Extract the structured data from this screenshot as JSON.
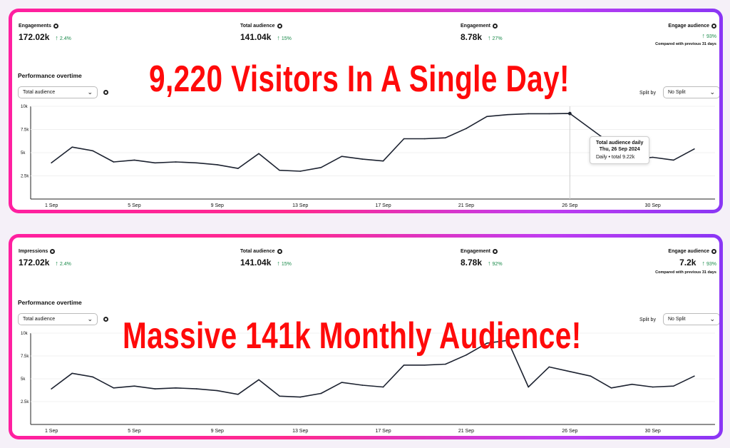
{
  "panel1": {
    "metrics": [
      {
        "label": "Engagements",
        "value": "172.02k",
        "change": "2.4%"
      },
      {
        "label": "Total audience",
        "value": "141.04k",
        "change": "15%"
      },
      {
        "label": "Engagement",
        "value": "8.78k",
        "change": "27%"
      },
      {
        "label": "Engage audience",
        "value": "",
        "change": "93%"
      }
    ],
    "compared": "Compared with previous 31 days",
    "perf_title": "Performance overtime",
    "select": "Total audience",
    "split_label": "Split by",
    "split_value": "No Split",
    "headline": "9,220 Visitors In A Single Day!",
    "tooltip": {
      "title": "Total audience daily",
      "date": "Thu, 26 Sep 2024",
      "value": "Daily • total 9.22k"
    }
  },
  "panel2": {
    "metrics": [
      {
        "label": "Impressions",
        "value": "172.02k",
        "change": "2.4%"
      },
      {
        "label": "Total audience",
        "value": "141.04k",
        "change": "15%"
      },
      {
        "label": "Engagement",
        "value": "8.78k",
        "change": "92%"
      },
      {
        "label": "Engage audience",
        "value": "7.2k",
        "change": "93%"
      }
    ],
    "compared": "Compared with previous 31 days",
    "perf_title": "Performance overtime",
    "select": "Total audience",
    "split_label": "Split by",
    "split_value": "No Split",
    "headline": "Massive 141k Monthly Audience!"
  },
  "icons": {
    "info": "info-icon",
    "arrow": "arrow-up-icon",
    "chevron": "chevron-down-icon"
  },
  "colors": {
    "accent_red": "#ff0a0a",
    "positive": "#1a8a4a",
    "frame_start": "#ff1fa0",
    "frame_end": "#8a36f5"
  },
  "chart_data": [
    {
      "type": "line",
      "yticks": [
        "10k",
        "7.5k",
        "5k",
        "2.5k"
      ],
      "ytick_values": [
        10000,
        7500,
        5000,
        2500
      ],
      "ylim": [
        0,
        10000
      ],
      "xlabels": [
        "1 Sep",
        "5 Sep",
        "9 Sep",
        "13 Sep",
        "17 Sep",
        "21 Sep",
        "26 Sep",
        "30 Sep"
      ],
      "xlabel_days": [
        1,
        5,
        9,
        13,
        17,
        21,
        26,
        30
      ],
      "xlim": [
        0,
        33
      ],
      "x": [
        1,
        2,
        3,
        4,
        5,
        6,
        7,
        8,
        9,
        10,
        11,
        12,
        13,
        14,
        15,
        16,
        17,
        18,
        19,
        20,
        21,
        22,
        23,
        24,
        25,
        26,
        29,
        30,
        31,
        32
      ],
      "values": [
        3900,
        5600,
        5200,
        4000,
        4200,
        3900,
        4000,
        3900,
        3700,
        3300,
        4900,
        3100,
        3000,
        3400,
        4600,
        4300,
        4100,
        6500,
        6500,
        6600,
        7600,
        8900,
        9100,
        9200,
        9200,
        9220,
        4300,
        4500,
        4200,
        5400
      ],
      "highlight_x": 26
    },
    {
      "type": "line",
      "yticks": [
        "10k",
        "7.5k",
        "5k",
        "2.5k"
      ],
      "ytick_values": [
        10000,
        7500,
        5000,
        2500
      ],
      "ylim": [
        0,
        10000
      ],
      "xlabels": [
        "1 Sep",
        "5 Sep",
        "9 Sep",
        "13 Sep",
        "17 Sep",
        "21 Sep",
        "26 Sep",
        "30 Sep"
      ],
      "xlabel_days": [
        1,
        5,
        9,
        13,
        17,
        21,
        26,
        30
      ],
      "xlim": [
        0,
        33
      ],
      "x": [
        1,
        2,
        3,
        4,
        5,
        6,
        7,
        8,
        9,
        10,
        11,
        12,
        13,
        14,
        15,
        16,
        17,
        18,
        19,
        20,
        21,
        22,
        23,
        24,
        25,
        26,
        27,
        28,
        29,
        30,
        31,
        32
      ],
      "values": [
        3900,
        5600,
        5200,
        4000,
        4200,
        3900,
        4000,
        3900,
        3700,
        3300,
        4900,
        3100,
        3000,
        3400,
        4600,
        4300,
        4100,
        6500,
        6500,
        6600,
        7600,
        8900,
        9200,
        4100,
        6300,
        5800,
        5300,
        4000,
        4400,
        4100,
        4200,
        5300
      ]
    }
  ]
}
